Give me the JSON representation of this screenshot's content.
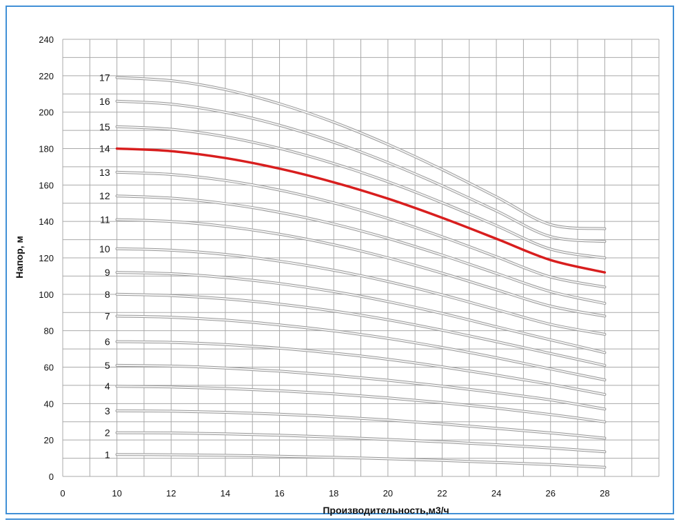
{
  "chart_data": {
    "type": "line",
    "title": "",
    "xlabel": "Производительность,м3/ч",
    "ylabel": "Напор, м",
    "xlim": [
      8,
      30
    ],
    "ylim": [
      0,
      240
    ],
    "x_origin_label": "0",
    "x_ticks": [
      10,
      12,
      14,
      16,
      18,
      20,
      22,
      24,
      26,
      28
    ],
    "y_ticks": [
      0,
      20,
      40,
      60,
      80,
      100,
      120,
      140,
      160,
      180,
      200,
      220,
      240
    ],
    "grid": true,
    "colors": {
      "highlight": "#d81e1e",
      "curve": "#bdbdbd",
      "grid": "#a8a8a8",
      "frame": "#3f8fd6"
    },
    "highlighted_series": "14",
    "x": [
      10,
      12,
      14,
      16,
      18,
      20,
      22,
      24,
      26,
      28
    ],
    "series": [
      {
        "name": "1",
        "values": [
          12,
          11.9,
          11.6,
          11.1,
          10.5,
          9.7,
          8.8,
          7.7,
          6.5,
          5
        ]
      },
      {
        "name": "2",
        "values": [
          24,
          23.9,
          23.4,
          22.6,
          21.6,
          20.3,
          19,
          17.4,
          15.6,
          13.5
        ]
      },
      {
        "name": "3",
        "values": [
          36,
          35.8,
          35.2,
          34.2,
          32.8,
          31,
          28.8,
          26.4,
          23.9,
          21
        ]
      },
      {
        "name": "4",
        "values": [
          49.5,
          49.1,
          48.3,
          47,
          45.3,
          43.1,
          40.5,
          37.5,
          34,
          30
        ]
      },
      {
        "name": "5",
        "values": [
          61,
          60.6,
          59.5,
          57.8,
          55.5,
          52.8,
          49.6,
          46,
          42,
          37
        ]
      },
      {
        "name": "6",
        "values": [
          74,
          73.6,
          72.4,
          70.4,
          67.7,
          64.3,
          60.2,
          55.6,
          50.6,
          45
        ]
      },
      {
        "name": "7",
        "values": [
          88,
          87.4,
          85.8,
          83.2,
          79.9,
          75.8,
          70.8,
          65.2,
          59,
          53
        ]
      },
      {
        "name": "8",
        "values": [
          100,
          99.3,
          97.5,
          94.6,
          90.8,
          86,
          80.3,
          74,
          67.5,
          61
        ]
      },
      {
        "name": "9",
        "values": [
          112,
          111.3,
          109.2,
          105.9,
          101.5,
          96,
          89.5,
          82.2,
          75,
          68
        ]
      },
      {
        "name": "10",
        "values": [
          125,
          124.2,
          121.9,
          118.2,
          113.2,
          107,
          99.7,
          91.6,
          83.5,
          78
        ]
      },
      {
        "name": "11",
        "values": [
          141,
          140,
          137.3,
          133,
          127.2,
          120,
          111.6,
          102.5,
          93.5,
          88
        ]
      },
      {
        "name": "12",
        "values": [
          154,
          152.8,
          149.8,
          145,
          138.6,
          130.7,
          121.5,
          111.5,
          101.5,
          95
        ]
      },
      {
        "name": "13",
        "values": [
          167,
          165.8,
          162.5,
          157.2,
          150.2,
          141.6,
          131.6,
          120.6,
          109.5,
          104
        ]
      },
      {
        "name": "14",
        "values": [
          180,
          178.6,
          174.8,
          169,
          161.5,
          152.5,
          142,
          130.5,
          118.8,
          112
        ]
      },
      {
        "name": "15",
        "values": [
          192,
          190.6,
          186.5,
          180.1,
          171.8,
          161.8,
          150.3,
          137.7,
          124.8,
          120
        ]
      },
      {
        "name": "16",
        "values": [
          206,
          204.4,
          199.9,
          192.8,
          183.5,
          172.3,
          159.6,
          145.8,
          131.7,
          129
        ]
      },
      {
        "name": "17",
        "values": [
          219,
          217.3,
          212.4,
          204.6,
          194.5,
          182.3,
          168.5,
          153.5,
          138.3,
          136
        ]
      }
    ]
  }
}
